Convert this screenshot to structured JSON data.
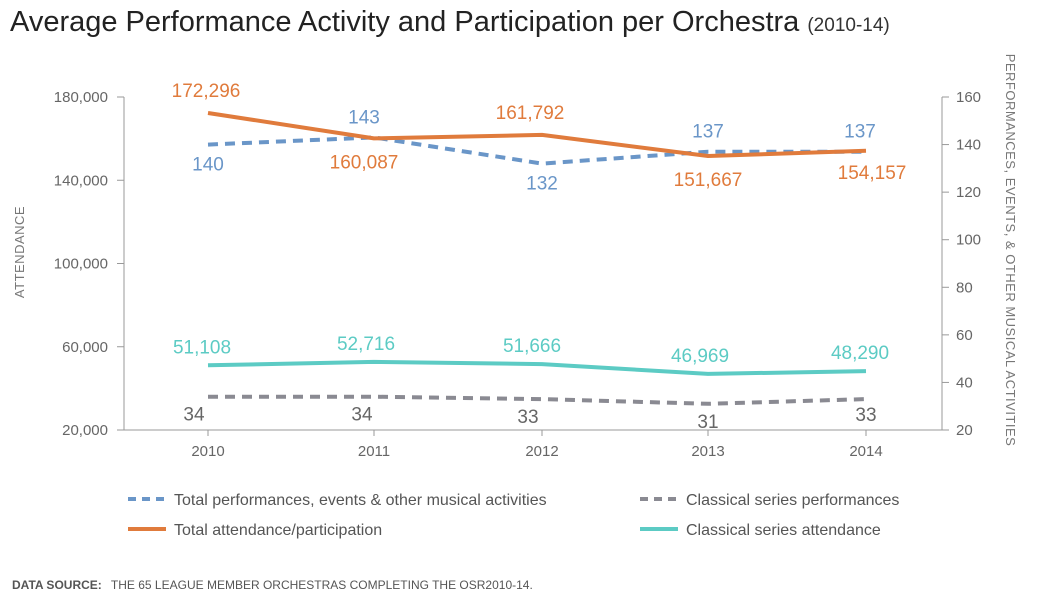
{
  "title": {
    "main": "Average Performance Activity and Participation per Orchestra",
    "sub": "(2010-14)"
  },
  "source": {
    "label": "DATA SOURCE:",
    "text": "THE 65 LEAGUE MEMBER ORCHESTRAS COMPLETING THE OSR2010-14."
  },
  "chart_data": {
    "type": "line",
    "categories": [
      "2010",
      "2011",
      "2012",
      "2013",
      "2014"
    ],
    "ylabel_left": "ATTENDANCE",
    "ylabel_right": "PERFORMANCES, EVENTS, & OTHER MUSICAL ACTIVITIES",
    "ylim_left": [
      20000,
      180000
    ],
    "yticks_left": [
      "20,000",
      "60,000",
      "100,000",
      "140,000",
      "180,000"
    ],
    "ytick_values_left": [
      20000,
      60000,
      100000,
      140000,
      180000
    ],
    "ylim_right": [
      20,
      160
    ],
    "yticks_right": [
      "20",
      "40",
      "60",
      "80",
      "100",
      "120",
      "140",
      "160"
    ],
    "ytick_values_right": [
      20,
      40,
      60,
      80,
      100,
      120,
      140,
      160
    ],
    "grid": false,
    "legend_position": "bottom",
    "series": [
      {
        "name": "Total performances, events & other musical activities",
        "axis": "right",
        "style": "dashed",
        "color": "#6a96c8",
        "values": [
          140,
          143,
          132,
          137,
          137
        ],
        "labels": [
          "140",
          "143",
          "132",
          "137",
          "137"
        ]
      },
      {
        "name": "Total attendance/participation",
        "axis": "left",
        "style": "solid",
        "color": "#e07b3c",
        "values": [
          172296,
          160087,
          161792,
          151667,
          154157
        ],
        "labels": [
          "172,296",
          "160,087",
          "161,792",
          "151,667",
          "154,157"
        ]
      },
      {
        "name": "Classical series performances",
        "axis": "right",
        "style": "dashed",
        "color": "#8a8a92",
        "values": [
          34,
          34,
          33,
          31,
          33
        ],
        "labels": [
          "34",
          "34",
          "33",
          "31",
          "33"
        ]
      },
      {
        "name": "Classical series attendance",
        "axis": "left",
        "style": "solid",
        "color": "#5ccbc4",
        "values": [
          51108,
          52716,
          51666,
          46969,
          48290
        ],
        "labels": [
          "51,108",
          "52,716",
          "51,666",
          "46,969",
          "48,290"
        ]
      }
    ]
  }
}
